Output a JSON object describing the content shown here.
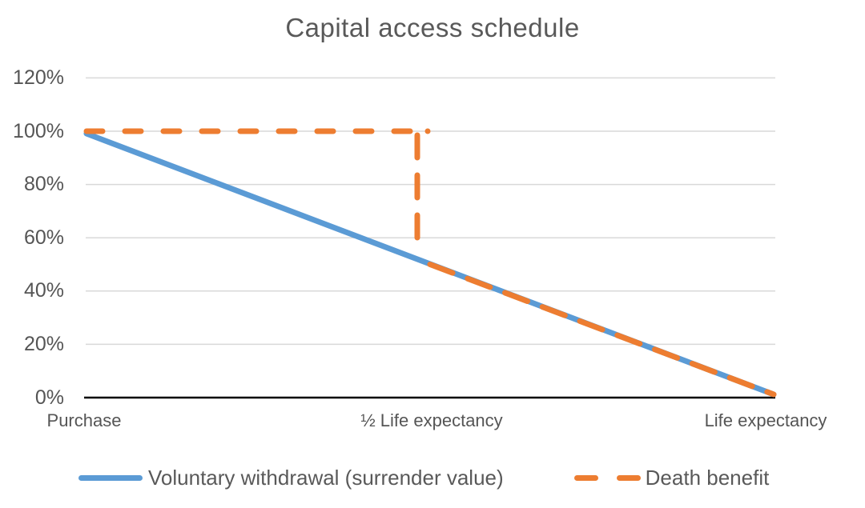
{
  "chart_data": {
    "type": "line",
    "title": "Capital access schedule",
    "x_categories": [
      "Purchase",
      "½ Life expectancy",
      "Life expectancy"
    ],
    "ytick_labels": [
      "120%",
      "100%",
      "80%",
      "60%",
      "40%",
      "20%",
      "0%"
    ],
    "ylim": [
      0,
      120
    ],
    "ytick_step": 20,
    "grid": "horizontal",
    "gridline_color": "#d9d9d9",
    "axis_line_color": "#000000",
    "text_color": "#595959",
    "legend_position": "bottom",
    "series": [
      {
        "name": "Voluntary withdrawal (surrender value)",
        "color": "#5b9bd5",
        "line_style": "solid",
        "points": [
          [
            0,
            100
          ],
          [
            2,
            0
          ]
        ]
      },
      {
        "name": "Death benefit",
        "color": "#ed7d31",
        "line_style": "dashed",
        "points": [
          [
            0,
            100
          ],
          [
            1,
            100
          ],
          [
            1,
            50
          ],
          [
            2,
            0
          ]
        ]
      }
    ]
  }
}
